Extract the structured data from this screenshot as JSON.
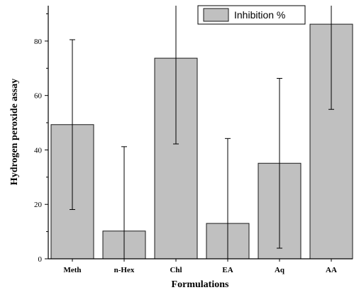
{
  "chart_data": {
    "type": "bar",
    "categories": [
      "Meth",
      "n-Hex",
      "Chl",
      "EA",
      "Aq",
      "AA"
    ],
    "series": [
      {
        "name": "Inhibition %",
        "values": [
          49.3,
          10.2,
          73.7,
          13.0,
          35.1,
          86.2
        ],
        "error": [
          31.2,
          31.0,
          31.5,
          31.2,
          31.2,
          31.3
        ]
      }
    ],
    "xlabel": "Formulations",
    "ylabel": "Hydrogen peroxide assay",
    "ylim": [
      0,
      93
    ],
    "yticks": [
      0,
      20,
      40,
      60,
      80
    ],
    "grid": false,
    "legend_position": "top-right",
    "bar_color": "#c0c0c0",
    "bar_stroke": "#1a1a1a"
  }
}
